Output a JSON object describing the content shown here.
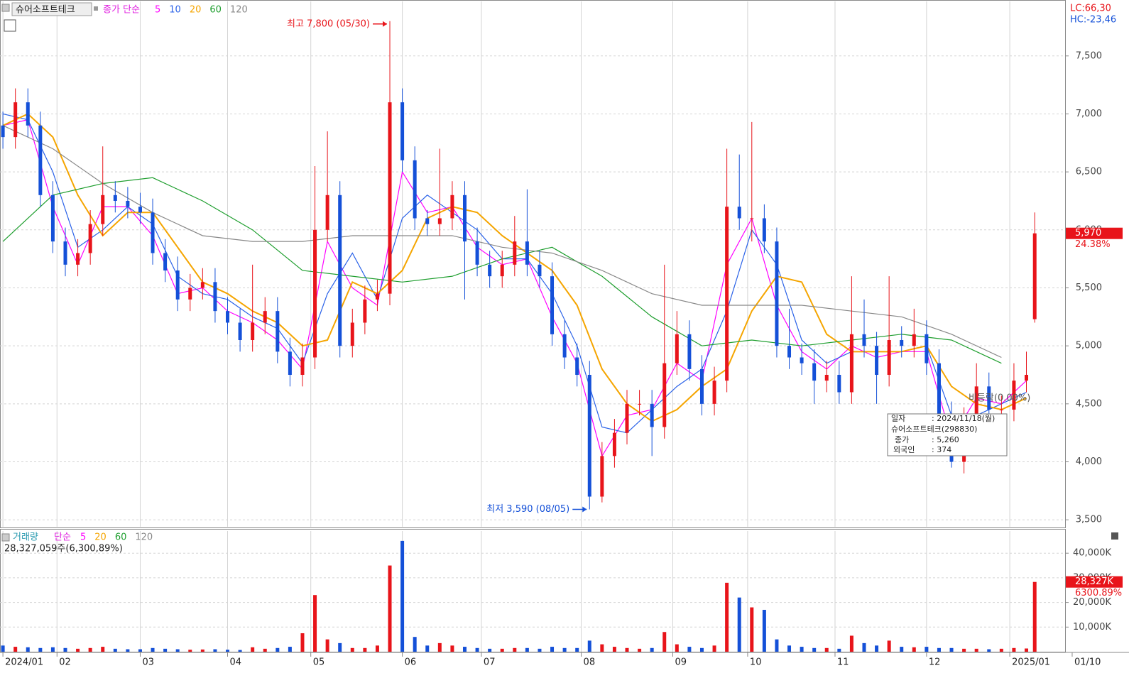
{
  "chart_data": {
    "type": "candlestick",
    "title": "슈어소프트테크",
    "ma_label": "종가 단순",
    "lc_label": "LC:66,30",
    "hc_label": "HC:-23,46",
    "high_label": "최고 7,800 (05/30)",
    "low_label": "최저 3,590 (08/05)",
    "flat_label": "비등락(0.00%)",
    "last_close_label": "5,970",
    "last_change_label": "24.38%",
    "up_color": "#e8141a",
    "down_color": "#1450d8",
    "grid": true,
    "xlim": [
      -0.7,
      255.3
    ],
    "xticks": [
      {
        "value": 0,
        "label": "2024/01"
      },
      {
        "value": 13,
        "label": "02"
      },
      {
        "value": 33,
        "label": "03"
      },
      {
        "value": 54,
        "label": "04"
      },
      {
        "value": 74,
        "label": "05"
      },
      {
        "value": 96,
        "label": "06"
      },
      {
        "value": 115,
        "label": "07"
      },
      {
        "value": 139,
        "label": "08"
      },
      {
        "value": 161,
        "label": "09"
      },
      {
        "value": 179,
        "label": "10"
      },
      {
        "value": 200,
        "label": "11"
      },
      {
        "value": 222,
        "label": "12"
      },
      {
        "value": 242,
        "label": "2025/01"
      },
      {
        "value": 257,
        "label": "01/10"
      }
    ],
    "ylim": [
      3440,
      7970
    ],
    "yticks": [
      {
        "value": 3500,
        "label": "3,500"
      },
      {
        "value": 4000,
        "label": "4,000"
      },
      {
        "value": 4500,
        "label": "4,500"
      },
      {
        "value": 5000,
        "label": "5,000"
      },
      {
        "value": 5500,
        "label": "5,500"
      },
      {
        "value": 6000,
        "label": "6,000"
      },
      {
        "value": 6500,
        "label": "6,500"
      },
      {
        "value": 7000,
        "label": "7,000"
      },
      {
        "value": 7500,
        "label": "7,500"
      }
    ],
    "x": [
      0,
      3,
      6,
      9,
      12,
      15,
      18,
      21,
      24,
      27,
      30,
      33,
      36,
      39,
      42,
      45,
      48,
      51,
      54,
      57,
      60,
      63,
      66,
      69,
      72,
      75,
      78,
      81,
      84,
      87,
      90,
      93,
      96,
      99,
      102,
      105,
      108,
      111,
      114,
      117,
      120,
      123,
      126,
      129,
      132,
      135,
      138,
      141,
      144,
      147,
      150,
      153,
      156,
      159,
      162,
      165,
      168,
      171,
      174,
      177,
      180,
      183,
      186,
      189,
      192,
      195,
      198,
      201,
      204,
      207,
      210,
      213,
      216,
      219,
      222,
      225,
      228,
      231,
      234,
      237,
      240,
      243,
      246,
      248
    ],
    "open": [
      6900,
      6800,
      7100,
      6900,
      6300,
      5900,
      5700,
      5800,
      6050,
      6300,
      6250,
      6200,
      6150,
      5800,
      5650,
      5400,
      5500,
      5550,
      5300,
      5200,
      5050,
      5200,
      5300,
      4950,
      4750,
      4900,
      6000,
      6300,
      5000,
      5200,
      5400,
      5450,
      7100,
      6600,
      6100,
      6050,
      6100,
      6300,
      5900,
      5700,
      5600,
      5700,
      5900,
      5700,
      5600,
      5100,
      4900,
      4750,
      3700,
      4050,
      4250,
      4500,
      4500,
      4300,
      4850,
      5100,
      4800,
      4500,
      4700,
      6200,
      6100,
      6100,
      5900,
      5000,
      4900,
      4850,
      4700,
      4750,
      4600,
      5100,
      5000,
      4750,
      5050,
      5000,
      5100,
      4850,
      4400,
      4000,
      4350,
      4650,
      4450,
      4450,
      4700,
      5230
    ],
    "high": [
      7020,
      7220,
      7220,
      7020,
      6420,
      6020,
      5920,
      6170,
      6720,
      6420,
      6370,
      6320,
      6270,
      5920,
      5770,
      5620,
      5670,
      5670,
      5420,
      5320,
      5700,
      5420,
      5420,
      5070,
      5020,
      6550,
      6850,
      6420,
      5320,
      5520,
      5570,
      7800,
      7220,
      6720,
      6170,
      6700,
      6420,
      6420,
      6020,
      5820,
      5820,
      6120,
      6350,
      5820,
      5720,
      5220,
      5020,
      4870,
      4170,
      4370,
      4620,
      4620,
      4620,
      5700,
      5300,
      5220,
      4920,
      4820,
      6700,
      6650,
      6930,
      6220,
      6020,
      5320,
      5020,
      4970,
      4870,
      4870,
      5600,
      5400,
      5120,
      5600,
      5170,
      5320,
      5220,
      4970,
      4520,
      4470,
      4850,
      4770,
      4570,
      4850,
      4950,
      6150
    ],
    "low": [
      6700,
      6700,
      6800,
      6200,
      5800,
      5600,
      5600,
      5700,
      5950,
      6150,
      6100,
      6050,
      5700,
      5550,
      5300,
      5300,
      5400,
      5200,
      5100,
      4950,
      4950,
      5100,
      4850,
      4650,
      4650,
      4800,
      5900,
      4900,
      4900,
      5100,
      5300,
      5350,
      6500,
      6000,
      5950,
      5950,
      6000,
      5400,
      5600,
      5500,
      5500,
      5600,
      5600,
      5500,
      5000,
      4800,
      4650,
      3590,
      3650,
      3950,
      4150,
      4400,
      4050,
      4200,
      4750,
      4700,
      4400,
      4400,
      4600,
      6000,
      5900,
      5800,
      4900,
      4800,
      4750,
      4500,
      4600,
      4500,
      4500,
      4900,
      4500,
      4650,
      4900,
      4900,
      4750,
      4300,
      3950,
      3900,
      4250,
      4350,
      4100,
      4350,
      4600,
      5200
    ],
    "close": [
      6800,
      7100,
      6900,
      6300,
      5900,
      5700,
      5800,
      6050,
      6300,
      6250,
      6200,
      6150,
      5800,
      5650,
      5400,
      5500,
      5550,
      5300,
      5200,
      5050,
      5200,
      5300,
      4950,
      4750,
      4900,
      6000,
      6300,
      5000,
      5200,
      5400,
      5450,
      7100,
      6600,
      6100,
      6050,
      6100,
      6300,
      5900,
      5700,
      5600,
      5700,
      5900,
      5700,
      5600,
      5100,
      4900,
      4750,
      3700,
      4050,
      4250,
      4500,
      4500,
      4300,
      4850,
      5100,
      4800,
      4500,
      4700,
      6200,
      6100,
      6100,
      5900,
      5000,
      4900,
      4850,
      4700,
      4750,
      4600,
      5100,
      5000,
      4750,
      5050,
      5000,
      5100,
      4850,
      4400,
      4000,
      4350,
      4650,
      4450,
      4450,
      4700,
      4750,
      5970
    ],
    "volume": [
      2500,
      2000,
      1800,
      1500,
      1800,
      1500,
      1200,
      1500,
      2000,
      1200,
      1000,
      1000,
      1500,
      1200,
      1000,
      800,
      900,
      1000,
      800,
      700,
      1800,
      1200,
      1500,
      2000,
      7500,
      23000,
      5000,
      3500,
      1500,
      1500,
      2500,
      35000,
      45000,
      6000,
      2500,
      3500,
      2500,
      2000,
      1500,
      1200,
      1200,
      1500,
      1500,
      1200,
      2000,
      1500,
      1500,
      4500,
      3000,
      2000,
      1500,
      1200,
      1500,
      8000,
      3000,
      2000,
      1500,
      2500,
      28000,
      22000,
      18000,
      17000,
      5000,
      2500,
      2000,
      1500,
      1500,
      1200,
      6500,
      3500,
      2500,
      4500,
      2000,
      1800,
      2000,
      1500,
      1500,
      1200,
      1200,
      1000,
      1200,
      1500,
      1300,
      28327
    ],
    "ma_series": [
      {
        "name": "5",
        "color": "#ff00ff",
        "x": [
          0,
          6,
          12,
          18,
          24,
          30,
          36,
          42,
          48,
          54,
          60,
          66,
          72,
          78,
          84,
          90,
          96,
          102,
          108,
          114,
          120,
          126,
          132,
          138,
          144,
          150,
          156,
          162,
          168,
          174,
          180,
          186,
          192,
          198,
          204,
          210,
          216,
          222,
          228,
          234,
          240,
          246
        ],
        "values": [
          6900,
          6950,
          6200,
          5700,
          6200,
          6200,
          5950,
          5450,
          5500,
          5300,
          5200,
          5050,
          4800,
          5900,
          5500,
          5350,
          6500,
          6150,
          6200,
          5850,
          5700,
          5750,
          5250,
          4850,
          4050,
          4400,
          4450,
          4850,
          4700,
          5700,
          6100,
          5350,
          4950,
          4800,
          5000,
          4900,
          4950,
          4950,
          4200,
          4550,
          4500,
          4700
        ]
      },
      {
        "name": "10",
        "color": "#2a62e8",
        "x": [
          0,
          6,
          12,
          18,
          24,
          30,
          36,
          42,
          48,
          54,
          60,
          66,
          72,
          78,
          84,
          90,
          96,
          102,
          108,
          114,
          120,
          126,
          132,
          138,
          144,
          150,
          156,
          162,
          168,
          174,
          180,
          186,
          192,
          198,
          204,
          210,
          216,
          222,
          228,
          234,
          240,
          246
        ],
        "values": [
          7000,
          6950,
          6500,
          5850,
          6000,
          6200,
          6050,
          5600,
          5450,
          5400,
          5250,
          5150,
          4850,
          5450,
          5800,
          5400,
          6100,
          6300,
          6150,
          6000,
          5750,
          5750,
          5450,
          5000,
          4300,
          4250,
          4450,
          4650,
          4800,
          5300,
          6000,
          5700,
          5050,
          4850,
          4950,
          4950,
          4950,
          5000,
          4400,
          4400,
          4500,
          4600
        ]
      },
      {
        "name": "20",
        "color": "#f5a500",
        "x": [
          0,
          6,
          12,
          18,
          24,
          30,
          36,
          42,
          48,
          54,
          60,
          66,
          72,
          78,
          84,
          90,
          96,
          102,
          108,
          114,
          120,
          126,
          132,
          138,
          144,
          150,
          156,
          162,
          168,
          174,
          180,
          186,
          192,
          198,
          204,
          210,
          216,
          222,
          228,
          234,
          240,
          246
        ],
        "values": [
          6900,
          7000,
          6800,
          6300,
          5950,
          6150,
          6150,
          5850,
          5550,
          5450,
          5300,
          5200,
          5000,
          5050,
          5550,
          5450,
          5650,
          6100,
          6200,
          6150,
          5950,
          5800,
          5650,
          5350,
          4800,
          4500,
          4350,
          4450,
          4650,
          4800,
          5300,
          5600,
          5550,
          5100,
          4950,
          4950,
          4950,
          5000,
          4650,
          4500,
          4450,
          4550
        ]
      },
      {
        "name": "60",
        "color": "#1e9e2e",
        "x": [
          0,
          12,
          24,
          36,
          48,
          60,
          72,
          84,
          96,
          108,
          120,
          132,
          144,
          156,
          168,
          180,
          192,
          204,
          216,
          228,
          240
        ],
        "values": [
          5900,
          6300,
          6400,
          6450,
          6250,
          6000,
          5650,
          5600,
          5550,
          5600,
          5750,
          5850,
          5600,
          5250,
          5000,
          5050,
          5000,
          5050,
          5100,
          5050,
          4850
        ]
      },
      {
        "name": "120",
        "color": "#888888",
        "x": [
          0,
          12,
          24,
          36,
          48,
          60,
          72,
          84,
          96,
          108,
          120,
          132,
          144,
          156,
          168,
          180,
          192,
          204,
          216,
          228,
          240
        ],
        "values": [
          6900,
          6700,
          6400,
          6150,
          5950,
          5900,
          5900,
          5950,
          5950,
          5950,
          5850,
          5800,
          5650,
          5450,
          5350,
          5350,
          5350,
          5300,
          5250,
          5100,
          4900
        ]
      }
    ],
    "volume_pane": {
      "title": "거래량",
      "ma_label": "단순",
      "ma_names": [
        "5",
        "20",
        "60",
        "120"
      ],
      "ma_colors": [
        "#ff00ff",
        "#f5a500",
        "#1e9e2e",
        "#888888"
      ],
      "summary": "28,327,059주(6,300,89%)",
      "ylim": [
        0,
        49000
      ],
      "yticks": [
        {
          "value": 10000,
          "label": "10,000K"
        },
        {
          "value": 20000,
          "label": "20,000K"
        },
        {
          "value": 30000,
          "label": "30,000K"
        },
        {
          "value": 40000,
          "label": "40,000K"
        }
      ],
      "last_label": "28,327K",
      "last_change_label": "6300.89%"
    },
    "tooltip": {
      "date_key": "일자",
      "date": ": 2024/11/18(월)",
      "name": "슈어소프트테크(298830)",
      "close_key": "종가",
      "close": ": 5,260",
      "foreign_key": "외국인",
      "foreign": ": 374"
    }
  }
}
